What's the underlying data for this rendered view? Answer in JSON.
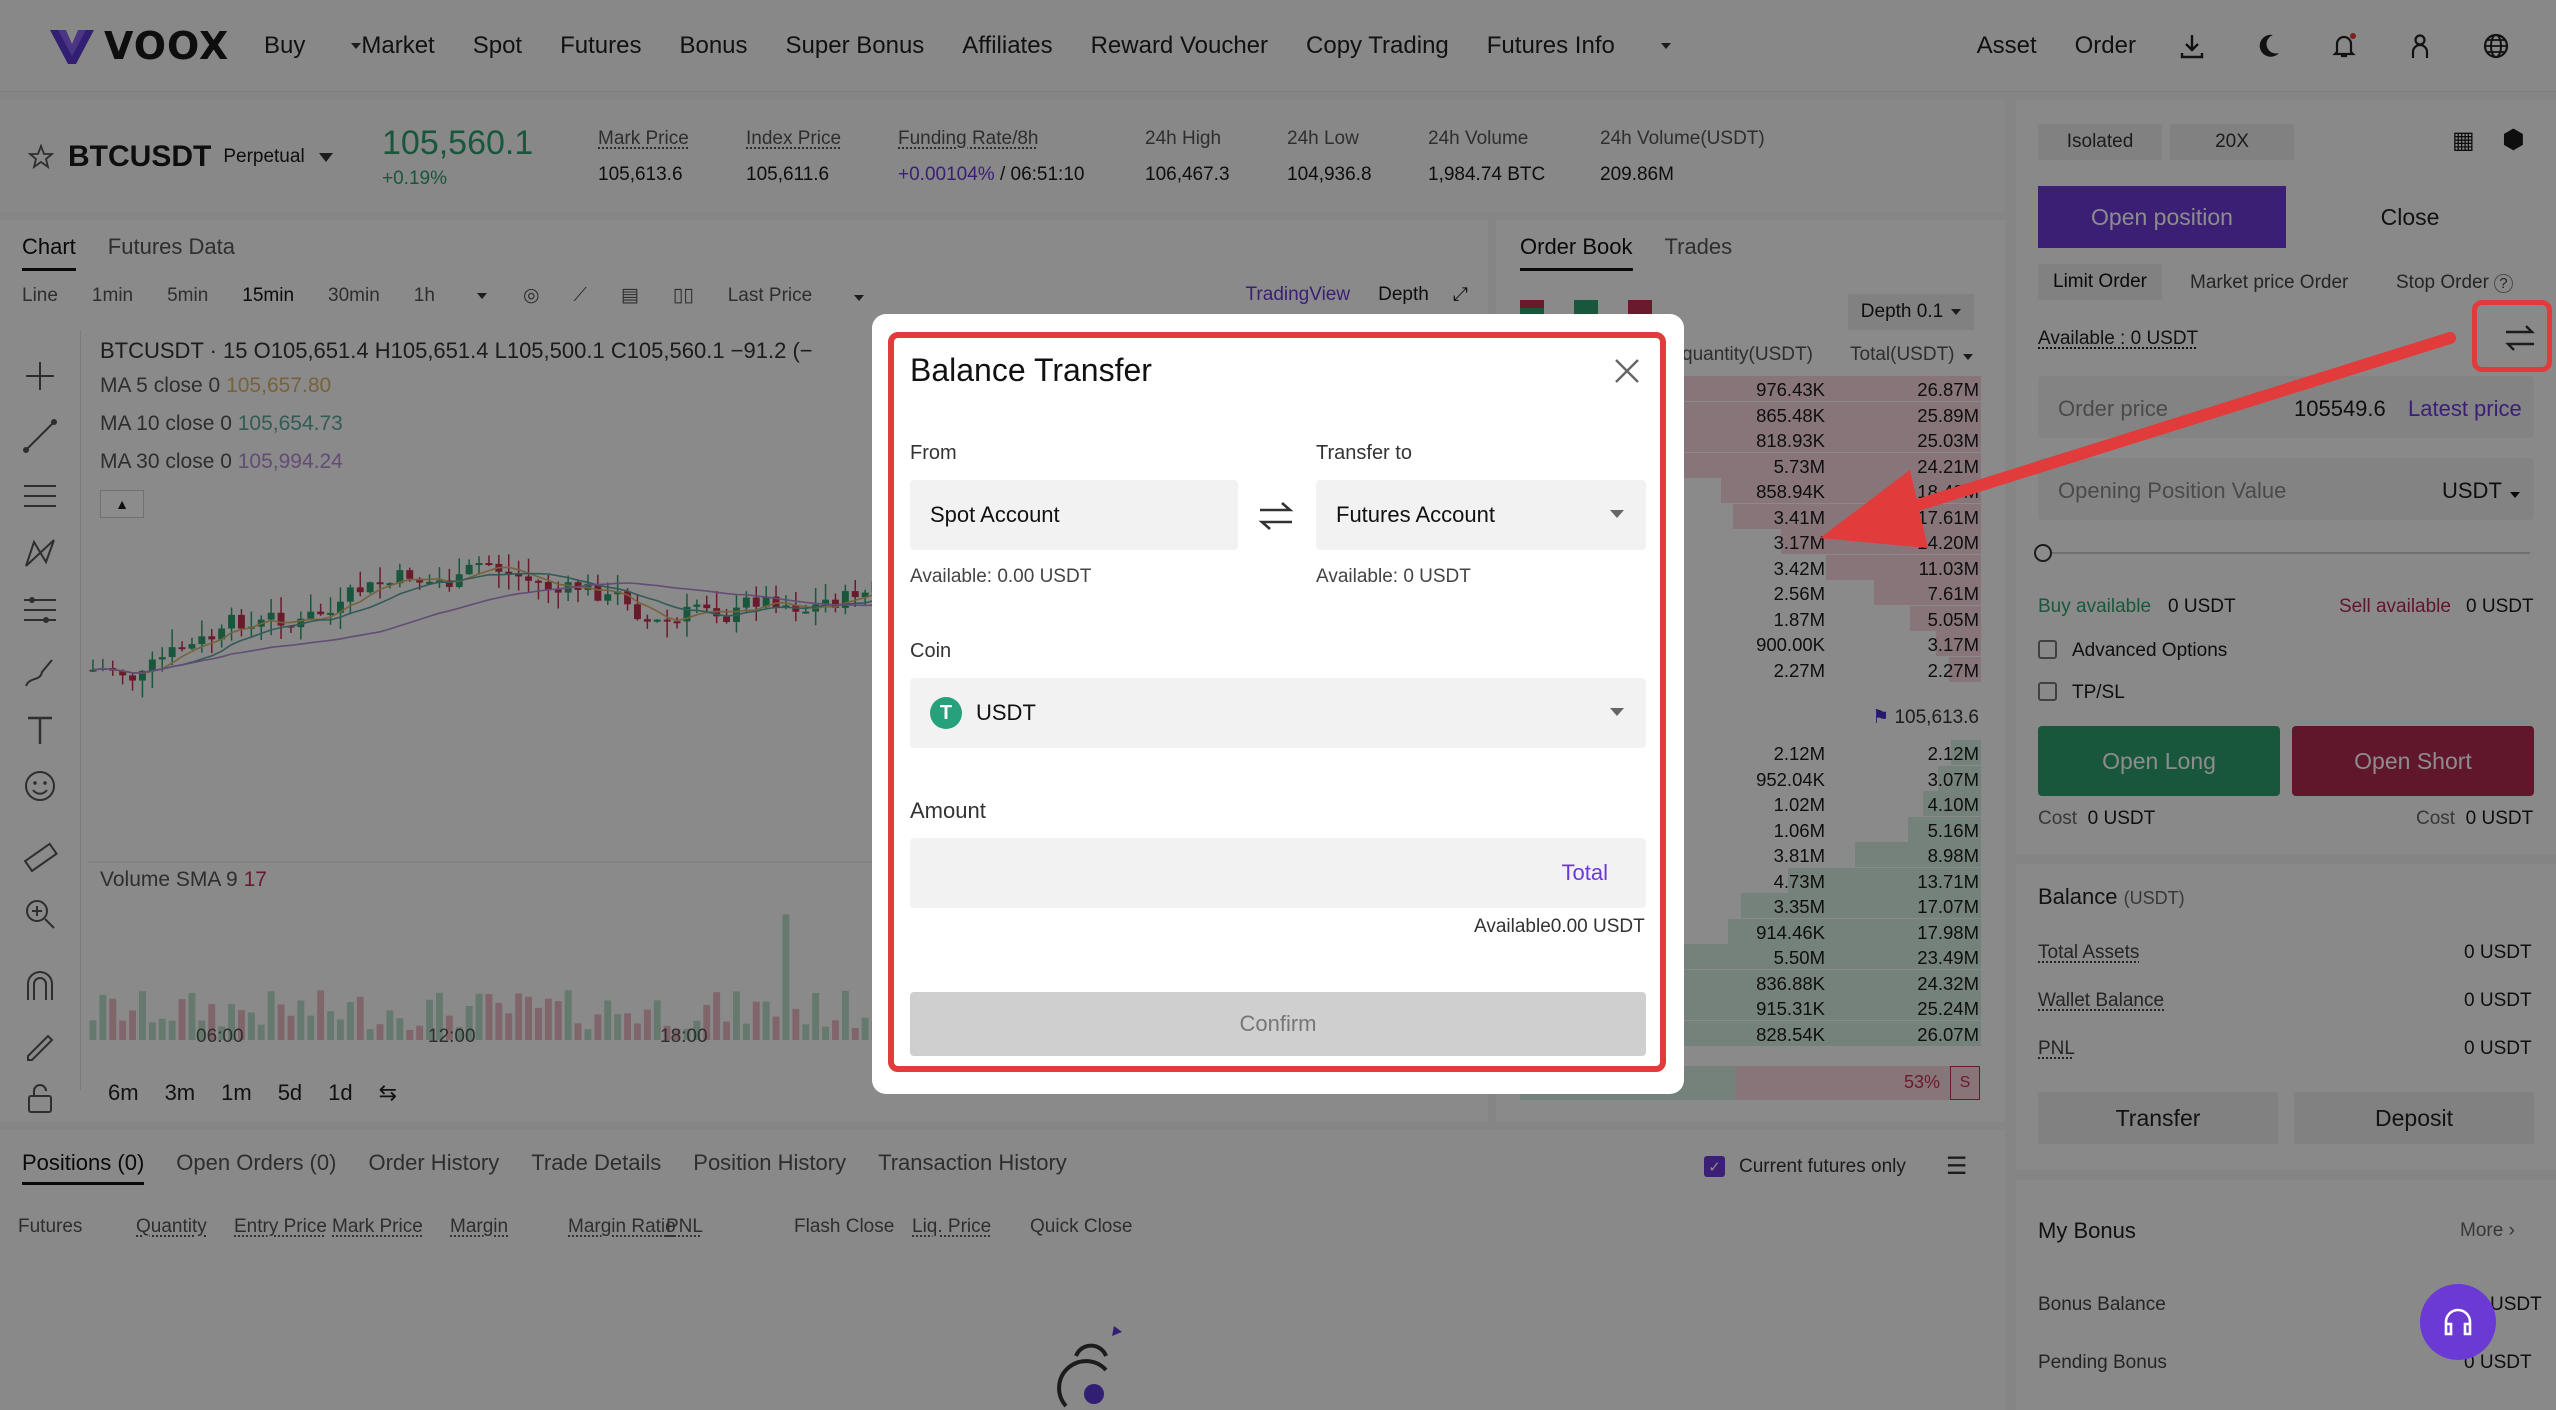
{
  "nav": {
    "brand": "VOOX",
    "items": [
      "Buy",
      "Market",
      "Spot",
      "Futures",
      "Bonus",
      "Super Bonus",
      "Affiliates",
      "Reward Voucher",
      "Copy Trading",
      "Futures Info"
    ],
    "right_items": [
      "Asset",
      "Order"
    ]
  },
  "ticker": {
    "symbol": "BTCUSDT",
    "contract": "Perpetual",
    "last_price": "105,560.1",
    "change": "+0.19%",
    "mark_label": "Mark Price",
    "mark_value": "105,613.6",
    "index_label": "Index Price",
    "index_value": "105,611.6",
    "funding_label": "Funding Rate/8h",
    "funding_rate": "+0.00104%",
    "funding_countdown": "/ 06:51:10",
    "high_label": "24h High",
    "high_value": "106,467.3",
    "low_label": "24h Low",
    "low_value": "104,936.8",
    "vol_label": "24h Volume",
    "vol_value": "1,984.74 BTC",
    "volusdt_label": "24h Volume(USDT)",
    "volusdt_value": "209.86M"
  },
  "chart": {
    "tabs": [
      "Chart",
      "Futures Data"
    ],
    "intervals": [
      "Line",
      "1min",
      "5min",
      "15min",
      "30min",
      "1h"
    ],
    "price_type": "Last Price",
    "view_tabs": [
      "TradingView",
      "Depth"
    ],
    "ohlc": "BTCUSDT · 15  O105,651.4  H105,651.4  L105,500.1  C105,560.1  −91.2 (−",
    "ma5_label": "MA 5 close 0",
    "ma5_value": "105,657.80",
    "ma10_label": "MA 10 close 0",
    "ma10_value": "105,654.73",
    "ma30_label": "MA 30 close 0",
    "ma30_value": "105,994.24",
    "vol_label": "Volume SMA 9",
    "vol_value": "17",
    "time_ticks": [
      "06:00",
      "12:00",
      "18:00"
    ],
    "ranges": [
      "6m",
      "3m",
      "1m",
      "5d",
      "1d"
    ],
    "colors": {
      "up": "#2f9e6e",
      "down": "#c2324f",
      "ma5": "#d9b36c",
      "ma10": "#5ba6a0",
      "ma30": "#b58ad6"
    }
  },
  "orderbook": {
    "tabs": [
      "Order Book",
      "Trades"
    ],
    "depth": "Depth 0.1",
    "col_qty": "quantity(USDT)",
    "col_total": "Total(USDT)",
    "asks": [
      {
        "q": "976.43K",
        "t": "26.87M"
      },
      {
        "q": "865.48K",
        "t": "25.89M"
      },
      {
        "q": "818.93K",
        "t": "25.03M"
      },
      {
        "q": "5.73M",
        "t": "24.21M"
      },
      {
        "q": "858.94K",
        "t": "18.48M"
      },
      {
        "q": "3.41M",
        "t": "17.61M"
      },
      {
        "q": "3.17M",
        "t": "14.20M"
      },
      {
        "q": "3.42M",
        "t": "11.03M"
      },
      {
        "q": "2.56M",
        "t": "7.61M"
      },
      {
        "q": "1.87M",
        "t": "5.05M"
      },
      {
        "q": "900.00K",
        "t": "3.17M"
      },
      {
        "q": "2.27M",
        "t": "2.27M"
      }
    ],
    "mark_price": "105,613.6",
    "bids": [
      {
        "q": "2.12M",
        "t": "2.12M"
      },
      {
        "q": "952.04K",
        "t": "3.07M"
      },
      {
        "q": "1.02M",
        "t": "4.10M"
      },
      {
        "q": "1.06M",
        "t": "5.16M"
      },
      {
        "q": "3.81M",
        "t": "8.98M"
      },
      {
        "q": "4.73M",
        "t": "13.71M"
      },
      {
        "q": "3.35M",
        "t": "17.07M"
      },
      {
        "q": "914.46K",
        "t": "17.98M"
      },
      {
        "q": "5.50M",
        "t": "23.49M"
      },
      {
        "q": "836.88K",
        "t": "24.32M"
      },
      {
        "q": "915.31K",
        "t": "25.24M"
      },
      {
        "q": "828.54K",
        "t": "26.07M"
      }
    ],
    "sell_ratio": "53%",
    "sell_tag": "S"
  },
  "trade": {
    "margin_mode": "Isolated",
    "leverage": "20X",
    "open_tab": "Open position",
    "close_tab": "Close",
    "order_types": [
      "Limit Order",
      "Market price Order",
      "Stop Order"
    ],
    "available": "Available : 0 USDT",
    "order_price_label": "Order price",
    "order_price_value": "105549.6",
    "latest_price": "Latest price",
    "position_value_label": "Opening Position Value",
    "position_unit": "USDT",
    "buy_available_label": "Buy available",
    "buy_available_value": "0 USDT",
    "sell_available_label": "Sell available",
    "sell_available_value": "0 USDT",
    "advanced": "Advanced Options",
    "tpsl": "TP/SL",
    "open_long": "Open Long",
    "open_short": "Open Short",
    "cost_label": "Cost",
    "cost_long": "0 USDT",
    "cost_short": "0 USDT",
    "balance_title": "Balance",
    "balance_unit": "(USDT)",
    "total_assets": "Total Assets",
    "total_assets_value": "0 USDT",
    "wallet_balance": "Wallet Balance",
    "wallet_balance_value": "0 USDT",
    "pnl": "PNL",
    "pnl_value": "0 USDT",
    "transfer": "Transfer",
    "deposit": "Deposit",
    "bonus_title": "My Bonus",
    "more": "More",
    "bonus_balance": "Bonus Balance",
    "bonus_balance_value": "USDT",
    "pending_bonus": "Pending Bonus",
    "pending_bonus_value": "0 USDT",
    "colors": {
      "accent": "#6b3ad4",
      "long": "#2f9e6e",
      "short": "#b0284f"
    }
  },
  "bottom": {
    "tabs": [
      "Positions (0)",
      "Open Orders (0)",
      "Order History",
      "Trade Details",
      "Position History",
      "Transaction History"
    ],
    "filter": "Current futures only",
    "columns": [
      "Futures",
      "Quantity",
      "Entry Price",
      "Mark Price",
      "Margin",
      "Margin Ratio",
      "PNL",
      "Flash Close",
      "Liq. Price",
      "Quick Close"
    ]
  },
  "modal": {
    "title": "Balance Transfer",
    "from_label": "From",
    "from_value": "Spot Account",
    "from_available": "Available: 0.00 USDT",
    "to_label": "Transfer to",
    "to_value": "Futures Account",
    "to_available": "Available: 0 USDT",
    "coin_label": "Coin",
    "coin_value": "USDT",
    "amount_label": "Amount",
    "amount_placeholder": "",
    "total_btn": "Total",
    "amount_available": "Available0.00 USDT",
    "confirm": "Confirm"
  }
}
